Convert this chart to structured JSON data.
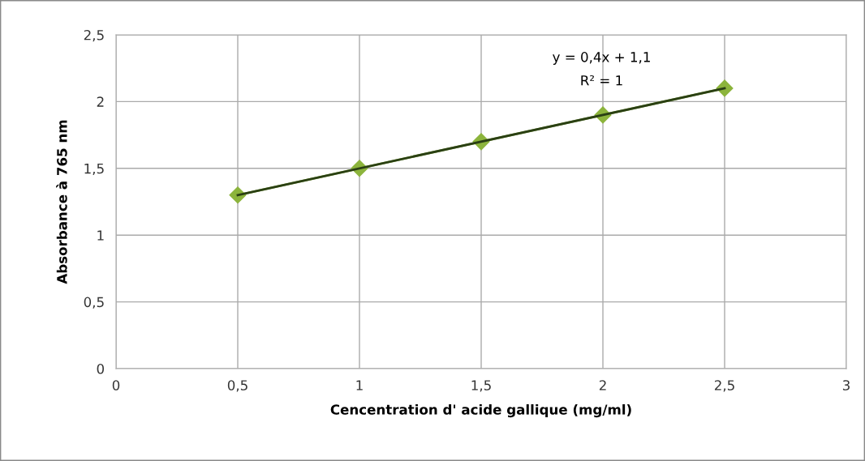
{
  "chart_data": {
    "type": "line",
    "xlabel": "Cencentration d' acide gallique (mg/ml)",
    "ylabel": "Absorbance à 765 nm",
    "x": [
      0.5,
      1,
      1.5,
      2,
      2.5
    ],
    "series": [
      {
        "color": "#8cb43c",
        "marker": "diamond",
        "values": [
          1.3,
          1.5,
          1.7,
          1.9,
          2.1
        ]
      },
      {
        "color": "#2a3f14",
        "marker": "none",
        "x": [
          0.5,
          2.5
        ],
        "values": [
          1.3,
          2.1
        ]
      }
    ],
    "annotations": [
      "y = 0,4x + 1,1",
      "R² = 1"
    ],
    "xlim": [
      0,
      3
    ],
    "ylim": [
      0,
      2.5
    ],
    "xticks": [
      0,
      {
        "value": 0.5,
        "label": "0,5"
      },
      1,
      {
        "value": 1.5,
        "label": "1,5"
      },
      2,
      {
        "value": 2.5,
        "label": "2,5"
      },
      3
    ],
    "yticks": [
      0,
      {
        "value": 0.5,
        "label": "0,5"
      },
      1,
      {
        "value": 1.5,
        "label": "1,5"
      },
      2,
      {
        "value": 2.5,
        "label": "2,5"
      }
    ],
    "grid": true,
    "legend": false
  }
}
